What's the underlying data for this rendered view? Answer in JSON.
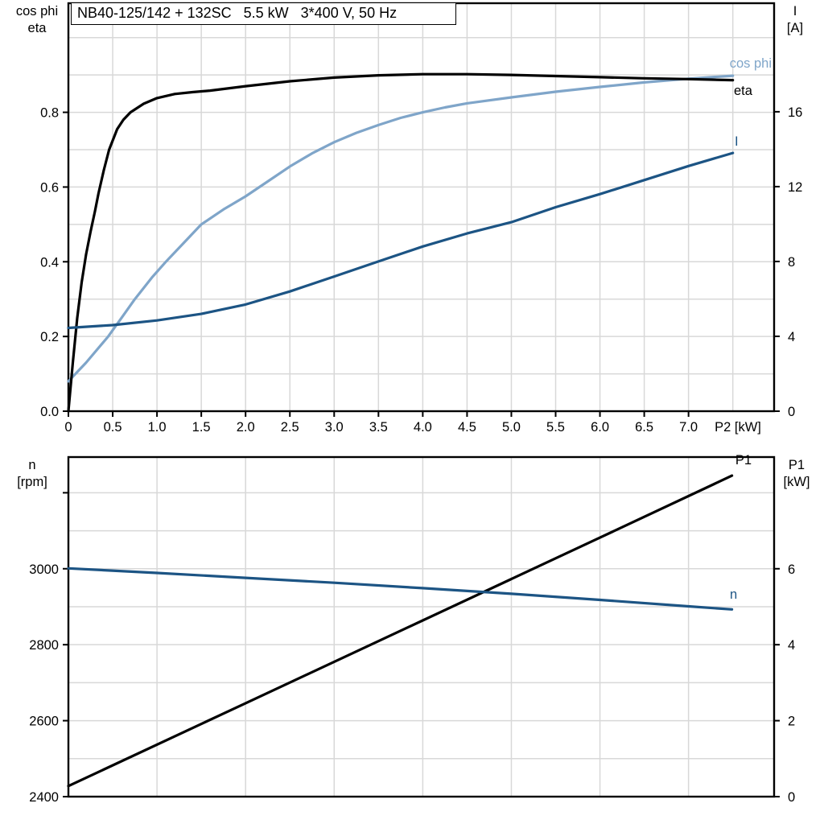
{
  "title_box": {
    "text": "NB40-125/142 + 132SC   5.5 kW   3*400 V, 50 Hz"
  },
  "colors": {
    "cos_phi": "#7FA5C9",
    "eta": "#000000",
    "current": "#1C5484",
    "speed": "#1C5484",
    "p1": "#000000",
    "grid": "#D8D8D8",
    "axis": "#000000",
    "background": "#FFFFFF"
  },
  "chart_data": [
    {
      "type": "line",
      "name": "motor-efficiency-current",
      "x_axis": {
        "label": "P2 [kW]",
        "min": 0,
        "max": 7.966,
        "grid_step": 0.5,
        "ticks": [
          {
            "v": 0,
            "label": "0"
          },
          {
            "v": 0.5,
            "label": "0.5"
          },
          {
            "v": 1,
            "label": "1.0"
          },
          {
            "v": 1.5,
            "label": "1.5"
          },
          {
            "v": 2,
            "label": "2.0"
          },
          {
            "v": 2.5,
            "label": "2.5"
          },
          {
            "v": 3,
            "label": "3.0"
          },
          {
            "v": 3.5,
            "label": "3.5"
          },
          {
            "v": 4,
            "label": "4.0"
          },
          {
            "v": 4.5,
            "label": "4.5"
          },
          {
            "v": 5,
            "label": "5.0"
          },
          {
            "v": 5.5,
            "label": "5.5"
          },
          {
            "v": 6,
            "label": "6.0"
          },
          {
            "v": 6.5,
            "label": "6.5"
          },
          {
            "v": 7,
            "label": "7.0"
          }
        ]
      },
      "y_left": {
        "title": [
          "cos phi",
          "eta"
        ],
        "min": 0,
        "max": 1.092,
        "grid_step": 0.1,
        "ticks": [
          {
            "v": 0,
            "label": "0.0"
          },
          {
            "v": 0.2,
            "label": "0.2"
          },
          {
            "v": 0.4,
            "label": "0.4"
          },
          {
            "v": 0.6,
            "label": "0.6"
          },
          {
            "v": 0.8,
            "label": "0.8"
          }
        ]
      },
      "y_right": {
        "title": [
          "I",
          "[A]"
        ],
        "min": 0,
        "max": 21.8,
        "ticks": [
          {
            "v": 0,
            "label": "0"
          },
          {
            "v": 4,
            "label": "4"
          },
          {
            "v": 8,
            "label": "8"
          },
          {
            "v": 12,
            "label": "12"
          },
          {
            "v": 16,
            "label": "16"
          }
        ]
      },
      "series": [
        {
          "name": "cos-phi",
          "label": "cos phi",
          "axis": "left",
          "color": "#7FA5C9",
          "points": [
            [
              0,
              0.08
            ],
            [
              0.2,
              0.13
            ],
            [
              0.45,
              0.2
            ],
            [
              0.6,
              0.25
            ],
            [
              0.75,
              0.3
            ],
            [
              0.95,
              0.36
            ],
            [
              1.1,
              0.4
            ],
            [
              1.3,
              0.45
            ],
            [
              1.5,
              0.5
            ],
            [
              1.75,
              0.54
            ],
            [
              2.0,
              0.575
            ],
            [
              2.25,
              0.615
            ],
            [
              2.5,
              0.655
            ],
            [
              2.75,
              0.69
            ],
            [
              3.0,
              0.72
            ],
            [
              3.25,
              0.745
            ],
            [
              3.5,
              0.766
            ],
            [
              3.75,
              0.785
            ],
            [
              4.0,
              0.8
            ],
            [
              4.25,
              0.813
            ],
            [
              4.5,
              0.824
            ],
            [
              5.0,
              0.84
            ],
            [
              5.5,
              0.855
            ],
            [
              6.0,
              0.868
            ],
            [
              6.5,
              0.88
            ],
            [
              7.0,
              0.89
            ],
            [
              7.5,
              0.898
            ]
          ]
        },
        {
          "name": "eta",
          "label": "eta",
          "axis": "left",
          "color": "#000000",
          "points": [
            [
              0,
              0
            ],
            [
              0.05,
              0.13
            ],
            [
              0.1,
              0.25
            ],
            [
              0.15,
              0.345
            ],
            [
              0.2,
              0.42
            ],
            [
              0.25,
              0.48
            ],
            [
              0.3,
              0.535
            ],
            [
              0.34,
              0.583
            ],
            [
              0.4,
              0.645
            ],
            [
              0.46,
              0.7
            ],
            [
              0.55,
              0.755
            ],
            [
              0.62,
              0.78
            ],
            [
              0.7,
              0.8
            ],
            [
              0.85,
              0.823
            ],
            [
              1.0,
              0.838
            ],
            [
              1.2,
              0.849
            ],
            [
              1.4,
              0.854
            ],
            [
              1.6,
              0.858
            ],
            [
              2.0,
              0.87
            ],
            [
              2.5,
              0.883
            ],
            [
              3.0,
              0.893
            ],
            [
              3.5,
              0.899
            ],
            [
              4.0,
              0.902
            ],
            [
              4.5,
              0.902
            ],
            [
              5.0,
              0.9
            ],
            [
              5.5,
              0.897
            ],
            [
              6.0,
              0.894
            ],
            [
              6.5,
              0.891
            ],
            [
              7.0,
              0.889
            ],
            [
              7.5,
              0.886
            ]
          ]
        },
        {
          "name": "current",
          "label": "I",
          "axis": "right",
          "color": "#1C5484",
          "points": [
            [
              0,
              4.45
            ],
            [
              0.5,
              4.6
            ],
            [
              1.0,
              4.85
            ],
            [
              1.5,
              5.2
            ],
            [
              2.0,
              5.7
            ],
            [
              2.5,
              6.4
            ],
            [
              3.0,
              7.2
            ],
            [
              3.5,
              8.0
            ],
            [
              4.0,
              8.8
            ],
            [
              4.5,
              9.5
            ],
            [
              5.0,
              10.1
            ],
            [
              5.5,
              10.9
            ],
            [
              6.0,
              11.6
            ],
            [
              6.5,
              12.35
            ],
            [
              7.0,
              13.1
            ],
            [
              7.5,
              13.8
            ]
          ]
        }
      ]
    },
    {
      "type": "line",
      "name": "speed-power",
      "x_axis": {
        "label": "",
        "min": 0,
        "max": 7.966,
        "grid_step": 1,
        "ticks": []
      },
      "y_left": {
        "title": [
          "n",
          "[rpm]"
        ],
        "min": 2400,
        "max": 3294,
        "grid_step": 100,
        "ticks": [
          {
            "v": 2400,
            "label": "2400"
          },
          {
            "v": 2600,
            "label": "2600"
          },
          {
            "v": 2800,
            "label": "2800"
          },
          {
            "v": 3000,
            "label": "3000"
          },
          {
            "v": 3200,
            "label": ""
          }
        ]
      },
      "y_right": {
        "title": [
          "P1",
          "[kW]"
        ],
        "min": 0,
        "max": 8.94,
        "ticks": [
          {
            "v": 0,
            "label": "0"
          },
          {
            "v": 2,
            "label": "2"
          },
          {
            "v": 4,
            "label": "4"
          },
          {
            "v": 6,
            "label": "6"
          }
        ]
      },
      "series": [
        {
          "name": "p1",
          "label": "P1",
          "axis": "right",
          "color": "#000000",
          "points": [
            [
              0,
              0.28
            ],
            [
              2,
              2.46
            ],
            [
              4,
              4.64
            ],
            [
              6,
              6.82
            ],
            [
              7.49,
              8.45
            ]
          ]
        },
        {
          "name": "speed",
          "label": "n",
          "axis": "left",
          "color": "#1C5484",
          "points": [
            [
              0,
              3001
            ],
            [
              1,
              2989
            ],
            [
              2,
              2976
            ],
            [
              3,
              2963
            ],
            [
              4,
              2949
            ],
            [
              5,
              2934
            ],
            [
              6,
              2918
            ],
            [
              7,
              2901
            ],
            [
              7.49,
              2893
            ]
          ]
        }
      ]
    }
  ]
}
